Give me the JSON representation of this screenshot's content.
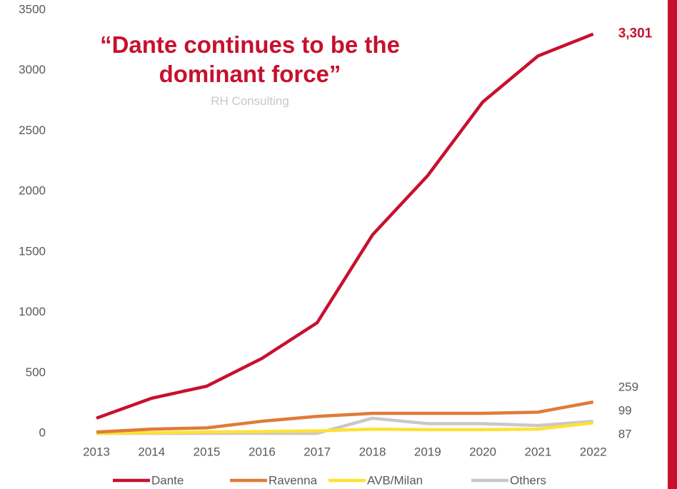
{
  "chart_data": {
    "type": "line",
    "title": "“Dante continues to be the dominant force”",
    "subtitle": "RH Consulting",
    "categories": [
      "2013",
      "2014",
      "2015",
      "2016",
      "2017",
      "2018",
      "2019",
      "2020",
      "2021",
      "2022"
    ],
    "series": [
      {
        "name": "Dante",
        "color": "#c8102e",
        "values": [
          125,
          290,
          390,
          620,
          915,
          1640,
          2130,
          2740,
          3120,
          3301
        ],
        "value_labels": [
          null,
          null,
          null,
          null,
          null,
          null,
          null,
          null,
          null,
          "3,301"
        ]
      },
      {
        "name": "Ravenna",
        "color": "#e07b39",
        "values": [
          10,
          35,
          45,
          100,
          140,
          165,
          165,
          165,
          175,
          259
        ],
        "value_labels": [
          null,
          null,
          null,
          null,
          null,
          null,
          null,
          null,
          null,
          "259"
        ]
      },
      {
        "name": "AVB/Milan",
        "color": "#ffe135",
        "values": [
          0,
          5,
          10,
          15,
          20,
          35,
          30,
          30,
          35,
          87
        ],
        "value_labels": [
          null,
          null,
          null,
          null,
          null,
          null,
          null,
          null,
          null,
          "87"
        ]
      },
      {
        "name": "Others",
        "color": "#c8c8c8",
        "values": [
          0,
          0,
          0,
          0,
          0,
          125,
          80,
          80,
          65,
          99
        ],
        "value_labels": [
          null,
          null,
          null,
          null,
          null,
          null,
          null,
          null,
          null,
          "99"
        ]
      }
    ],
    "ylim": [
      0,
      3500
    ],
    "yticks": [
      0,
      500,
      1000,
      1500,
      2000,
      2500,
      3000,
      3500
    ],
    "grid": false,
    "legend": "bottom"
  }
}
